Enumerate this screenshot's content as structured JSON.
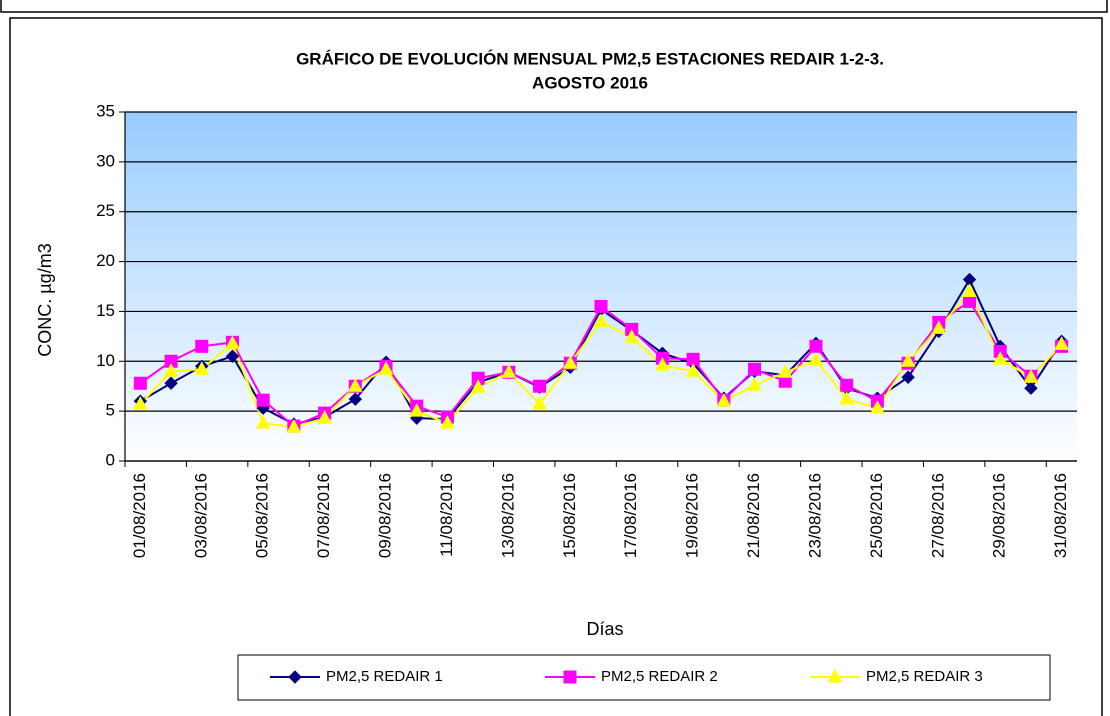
{
  "chart_data": {
    "type": "line",
    "title": [
      "GRÁFICO DE EVOLUCIÓN MENSUAL PM2,5 ESTACIONES REDAIR 1-2-3.",
      "AGOSTO 2016"
    ],
    "y_label": "CONC.  µg/m3",
    "x_label": "Días",
    "categories": [
      "01/08/2016",
      null,
      "03/08/2016",
      null,
      "05/08/2016",
      null,
      "07/08/2016",
      null,
      "09/08/2016",
      null,
      "11/08/2016",
      null,
      "13/08/2016",
      null,
      "15/08/2016",
      null,
      "17/08/2016",
      null,
      "19/08/2016",
      null,
      "21/08/2016",
      null,
      "23/08/2016",
      null,
      "25/08/2016",
      null,
      "27/08/2016",
      null,
      "29/08/2016",
      null,
      "31/08/2016"
    ],
    "series": [
      {
        "name": "PM2,5 REDAIR 1",
        "color": "#000080",
        "marker": "diamond",
        "values": [
          6.0,
          7.8,
          9.5,
          10.5,
          5.3,
          3.7,
          4.4,
          6.2,
          9.9,
          4.3,
          4.2,
          7.9,
          8.9,
          7.4,
          9.4,
          15.2,
          13.1,
          10.8,
          9.8,
          6.3,
          9.0,
          8.6,
          11.8,
          7.3,
          6.3,
          8.4,
          13.0,
          18.2,
          11.5,
          7.3,
          12.0
        ]
      },
      {
        "name": "PM2,5 REDAIR 2",
        "color": "#ff00ff",
        "marker": "square",
        "values": [
          7.8,
          10.0,
          11.5,
          11.9,
          6.1,
          3.5,
          4.8,
          7.5,
          9.5,
          5.5,
          4.4,
          8.3,
          8.9,
          7.5,
          9.8,
          15.5,
          13.2,
          10.3,
          10.2,
          6.1,
          9.2,
          8.0,
          11.5,
          7.6,
          6.0,
          9.8,
          13.9,
          16.0,
          11.0,
          8.5,
          11.5
        ]
      },
      {
        "name": "PM2,5 REDAIR 3",
        "color": "#ffff00",
        "marker": "triangle",
        "values": [
          5.7,
          9.0,
          9.2,
          11.8,
          3.8,
          3.4,
          4.3,
          7.5,
          9.2,
          5.0,
          3.8,
          7.4,
          8.9,
          5.7,
          9.8,
          14.0,
          12.4,
          9.6,
          9.0,
          6.0,
          7.6,
          8.9,
          10.1,
          6.2,
          5.3,
          10.0,
          13.3,
          17.0,
          10.2,
          8.4,
          11.7
        ]
      }
    ],
    "ylim": [
      0,
      35
    ],
    "yticks": [
      0,
      5,
      10,
      15,
      20,
      25,
      30,
      35
    ],
    "grid": true,
    "legend": "bottom"
  }
}
